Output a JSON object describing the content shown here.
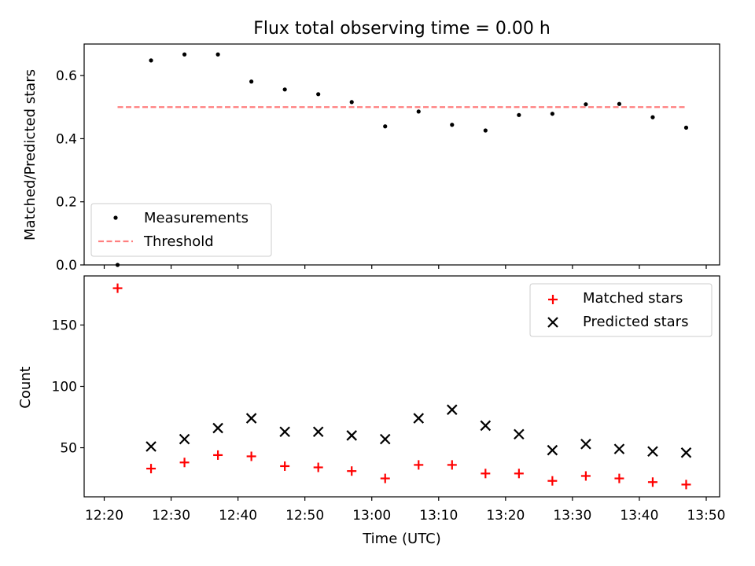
{
  "figure": {
    "title": "Flux total observing time = 0.00 h"
  },
  "chart_data": [
    {
      "type": "scatter",
      "ylabel": "Matched/Predicted stars",
      "xlabel": "",
      "xlim": [
        "12:17",
        "13:52"
      ],
      "ylim": [
        0,
        0.7
      ],
      "yticks": [
        0.0,
        0.2,
        0.4,
        0.6
      ],
      "yticklabels": [
        "0.0",
        "0.2",
        "0.4",
        "0.6"
      ],
      "grid": false,
      "legend_position": "lower-left",
      "series": [
        {
          "name": "Measurements",
          "kind": "points",
          "color": "#000000",
          "x": [
            "12:22",
            "12:27",
            "12:32",
            "12:37",
            "12:42",
            "12:47",
            "12:52",
            "12:57",
            "13:02",
            "13:07",
            "13:12",
            "13:17",
            "13:22",
            "13:27",
            "13:32",
            "13:37",
            "13:42",
            "13:47"
          ],
          "y": [
            0.0,
            0.648,
            0.667,
            0.667,
            0.581,
            0.556,
            0.541,
            0.516,
            0.439,
            0.486,
            0.444,
            0.426,
            0.475,
            0.479,
            0.509,
            0.51,
            0.468,
            0.435
          ]
        },
        {
          "name": "Threshold",
          "kind": "dashed-line",
          "color": "#ff7f7f",
          "x": [
            "12:22",
            "13:47"
          ],
          "y": [
            0.5,
            0.5
          ]
        }
      ]
    },
    {
      "type": "scatter",
      "ylabel": "Count",
      "xlabel": "Time (UTC)",
      "xlim": [
        "12:17",
        "13:52"
      ],
      "ylim": [
        10,
        190
      ],
      "yticks": [
        50,
        100,
        150
      ],
      "yticklabels": [
        "50",
        "100",
        "150"
      ],
      "xticks": [
        "12:20",
        "12:30",
        "12:40",
        "12:50",
        "13:00",
        "13:10",
        "13:20",
        "13:30",
        "13:40",
        "13:50"
      ],
      "xticklabels": [
        "12:20",
        "12:30",
        "12:40",
        "12:50",
        "13:00",
        "13:10",
        "13:20",
        "13:30",
        "13:40",
        "13:50"
      ],
      "grid": false,
      "legend_position": "upper-right",
      "series": [
        {
          "name": "Matched stars",
          "marker": "plus",
          "color": "#ff0000",
          "x": [
            "12:22",
            "12:27",
            "12:32",
            "12:37",
            "12:42",
            "12:47",
            "12:52",
            "12:57",
            "13:02",
            "13:07",
            "13:12",
            "13:17",
            "13:22",
            "13:27",
            "13:32",
            "13:37",
            "13:42",
            "13:47"
          ],
          "y": [
            180,
            33,
            38,
            44,
            43,
            35,
            34,
            31,
            25,
            36,
            36,
            29,
            29,
            23,
            27,
            25,
            22,
            20
          ]
        },
        {
          "name": "Predicted stars",
          "marker": "x",
          "color": "#000000",
          "x": [
            "12:27",
            "12:32",
            "12:37",
            "12:42",
            "12:47",
            "12:52",
            "12:57",
            "13:02",
            "13:07",
            "13:12",
            "13:17",
            "13:22",
            "13:27",
            "13:32",
            "13:37",
            "13:42",
            "13:47"
          ],
          "y": [
            51,
            57,
            66,
            74,
            63,
            63,
            60,
            57,
            74,
            81,
            68,
            61,
            48,
            53,
            49,
            47,
            46
          ]
        }
      ]
    }
  ]
}
